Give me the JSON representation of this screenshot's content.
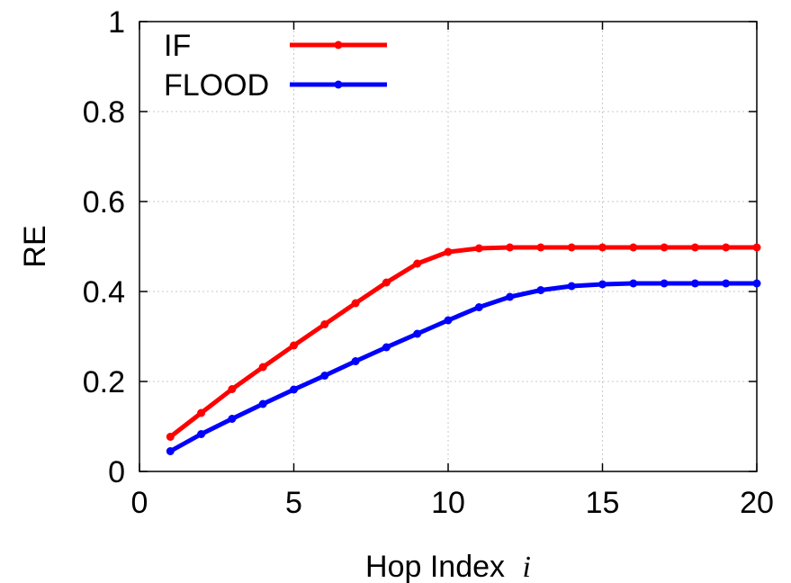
{
  "chart_data": {
    "type": "line",
    "title": "",
    "xlabel": "Hop Index",
    "xlabel_var": "i",
    "ylabel": "RE",
    "xlim": [
      0,
      20
    ],
    "ylim": [
      0,
      1
    ],
    "xticks": [
      0,
      5,
      10,
      15,
      20
    ],
    "yticks": [
      0,
      0.2,
      0.4,
      0.6,
      0.8,
      1
    ],
    "xtick_labels": [
      "0",
      "5",
      "10",
      "15",
      "20"
    ],
    "ytick_labels": [
      "0",
      "0.2",
      "0.4",
      "0.6",
      "0.8",
      "1"
    ],
    "grid": true,
    "legend_position": "top-left",
    "x": [
      1,
      2,
      3,
      4,
      5,
      6,
      7,
      8,
      9,
      10,
      11,
      12,
      13,
      14,
      15,
      16,
      17,
      18,
      19,
      20
    ],
    "series": [
      {
        "name": "IF",
        "color": "#ff0000",
        "values": [
          0.077,
          0.13,
          0.183,
          0.232,
          0.28,
          0.327,
          0.374,
          0.42,
          0.462,
          0.488,
          0.496,
          0.498,
          0.498,
          0.498,
          0.498,
          0.498,
          0.498,
          0.498,
          0.498,
          0.498
        ]
      },
      {
        "name": "FLOOD",
        "color": "#0000ff",
        "values": [
          0.045,
          0.083,
          0.117,
          0.15,
          0.182,
          0.213,
          0.245,
          0.276,
          0.306,
          0.336,
          0.365,
          0.388,
          0.403,
          0.412,
          0.416,
          0.418,
          0.418,
          0.418,
          0.418,
          0.418
        ]
      }
    ]
  }
}
